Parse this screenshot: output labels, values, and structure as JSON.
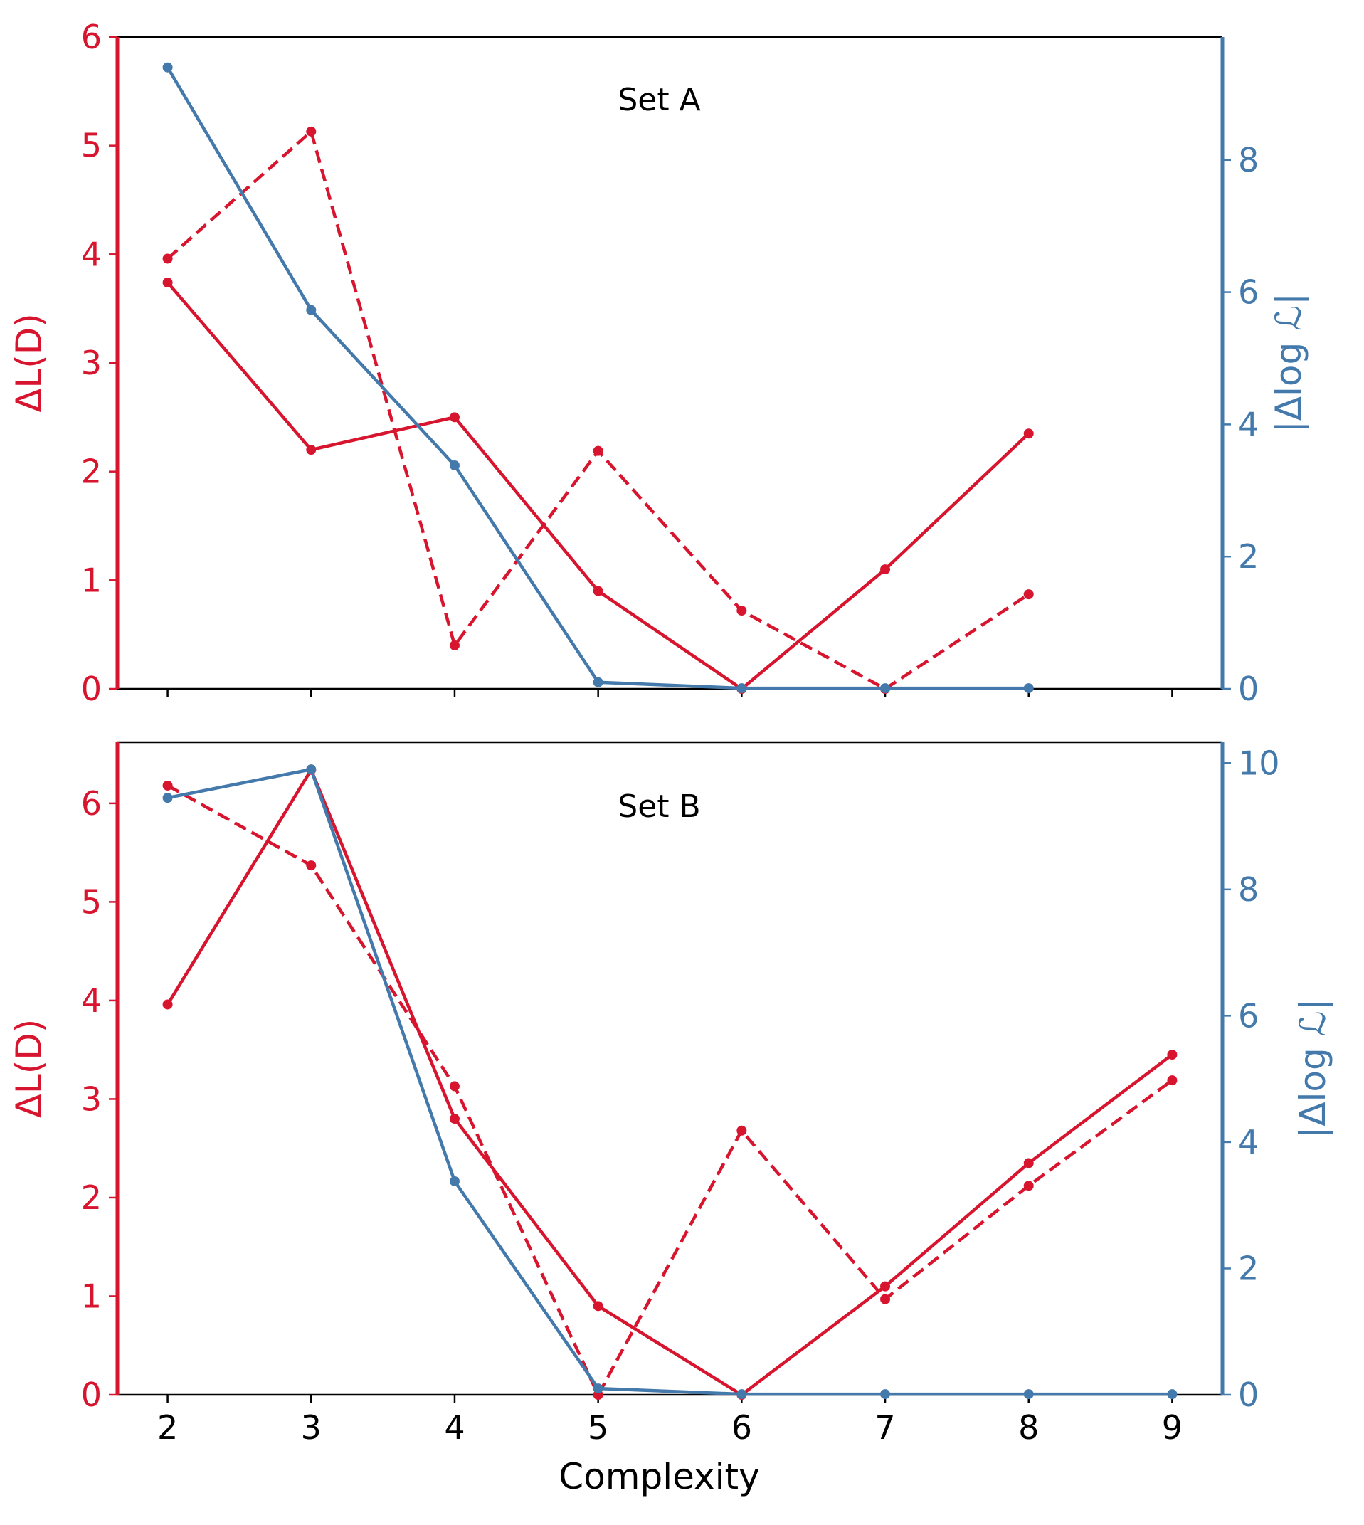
{
  "colors": {
    "left_axis": "#d7152e",
    "right_axis": "#4479ab",
    "frame": "#000000"
  },
  "chart_data": [
    {
      "type": "line",
      "title": "Set A",
      "ylabel": "ΔL(D)",
      "y2label": "|Δlog ℒ|",
      "xlabel": "",
      "xlim": [
        1.65,
        9.35
      ],
      "ylim": [
        0,
        6
      ],
      "y2lim": [
        0,
        9.86
      ],
      "xticks": [
        "2",
        "3",
        "4",
        "5",
        "6",
        "7",
        "8",
        "9"
      ],
      "yticks": [
        "0",
        "1",
        "2",
        "3",
        "4",
        "5",
        "6"
      ],
      "y2ticks": [
        "0",
        "2",
        "4",
        "6",
        "8"
      ],
      "series": [
        {
          "axis": "left",
          "style": "solid",
          "color": "#d7152e",
          "x": [
            2,
            3,
            4,
            5,
            6,
            7,
            8
          ],
          "y": [
            3.74,
            2.2,
            2.5,
            0.9,
            0.0,
            1.1,
            2.35
          ]
        },
        {
          "axis": "left",
          "style": "dashed",
          "color": "#d7152e",
          "x": [
            2,
            3,
            4,
            5,
            6,
            7,
            8
          ],
          "y": [
            3.96,
            5.13,
            0.4,
            2.19,
            0.72,
            0.0,
            0.87
          ]
        },
        {
          "axis": "right",
          "style": "solid",
          "color": "#4479ab",
          "x": [
            2,
            3,
            4,
            5,
            6,
            7,
            8
          ],
          "y": [
            9.4,
            5.73,
            3.38,
            0.1,
            0.01,
            0.01,
            0.01
          ]
        }
      ]
    },
    {
      "type": "line",
      "title": "Set B",
      "ylabel": "ΔL(D)",
      "y2label": "|Δlog ℒ|",
      "xlabel": "Complexity",
      "xlim": [
        1.65,
        9.35
      ],
      "ylim": [
        0,
        6.62
      ],
      "y2lim": [
        0,
        10.33
      ],
      "xticks": [
        "2",
        "3",
        "4",
        "5",
        "6",
        "7",
        "8",
        "9"
      ],
      "yticks": [
        "0",
        "1",
        "2",
        "3",
        "4",
        "5",
        "6"
      ],
      "y2ticks": [
        "0",
        "2",
        "4",
        "6",
        "8",
        "10"
      ],
      "series": [
        {
          "axis": "left",
          "style": "solid",
          "color": "#d7152e",
          "x": [
            2,
            3,
            4,
            5,
            6,
            7,
            8,
            9
          ],
          "y": [
            3.96,
            6.34,
            2.8,
            0.9,
            0.0,
            1.1,
            2.35,
            3.45
          ]
        },
        {
          "axis": "left",
          "style": "dashed",
          "color": "#d7152e",
          "x": [
            2,
            3,
            4,
            5,
            6,
            7,
            8,
            9
          ],
          "y": [
            6.18,
            5.37,
            3.13,
            0.0,
            2.68,
            0.97,
            2.12,
            3.19
          ]
        },
        {
          "axis": "right",
          "style": "solid",
          "color": "#4479ab",
          "x": [
            2,
            3,
            4,
            5,
            6,
            7,
            8,
            9
          ],
          "y": [
            9.45,
            9.9,
            3.38,
            0.1,
            0.01,
            0.01,
            0.01,
            0.01
          ]
        }
      ]
    }
  ]
}
